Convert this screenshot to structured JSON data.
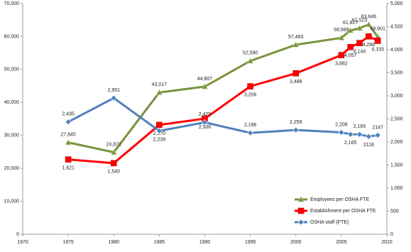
{
  "chart_data": {
    "type": "line",
    "x": [
      1975,
      1980,
      1985,
      1990,
      1995,
      2000,
      2005,
      2006,
      2007,
      2008,
      2009
    ],
    "xlim": [
      1970,
      2010
    ],
    "xticks": [
      1970,
      1975,
      1980,
      1985,
      1990,
      1995,
      2000,
      2005,
      2010
    ],
    "ylim": [
      0,
      70000
    ],
    "yticks": [
      0,
      {
        "value": 10000,
        "label": "10,000"
      },
      {
        "value": 20000,
        "label": "20,000"
      },
      {
        "value": 30000,
        "label": "30,000"
      },
      {
        "value": 40000,
        "label": "40,000"
      },
      {
        "value": 50000,
        "label": "50,000"
      },
      {
        "value": 60000,
        "label": "60,000"
      },
      {
        "value": 70000,
        "label": "70,000"
      }
    ],
    "y2lim": [
      0,
      5000
    ],
    "y2ticks": [
      0,
      500,
      {
        "value": 1000,
        "label": "1,000"
      },
      {
        "value": 1500,
        "label": "1,500"
      },
      {
        "value": 2000,
        "label": "2,000"
      },
      {
        "value": 2500,
        "label": "2,500"
      },
      {
        "value": 3000,
        "label": "3,000"
      },
      {
        "value": 3500,
        "label": "3,500"
      },
      {
        "value": 4000,
        "label": "4,000"
      },
      {
        "value": 4500,
        "label": "4,500"
      },
      {
        "value": 5000,
        "label": "5,000"
      }
    ],
    "legend": "lower right",
    "series": [
      {
        "name": "Employees per OSHA FTE",
        "color": "#77933c",
        "marker": "triangle",
        "values": [
          27845,
          24871,
          43017,
          44807,
          52590,
          57493,
          59589,
          61817,
          62523,
          63648,
          59901
        ],
        "value_labels": [
          "27,845",
          "24,871",
          "43,017",
          "44,807",
          "52,590",
          "57,493",
          "59,589",
          "61,817",
          "62,523",
          "63,648",
          "59,901"
        ]
      },
      {
        "name": "Establishment per OSHA FTE",
        "color": "#ff0000",
        "marker": "square",
        "axis": "y2",
        "values": [
          1621,
          1540,
          2370,
          2506,
          3206,
          3488,
          3882,
          4057,
          4144,
          4288,
          4193
        ],
        "value_labels": [
          "1,621",
          "1,540",
          "2,370",
          "2,506",
          "3,206",
          "3,488",
          "3,882",
          "4,057",
          "4,144",
          "4,288",
          "4,193"
        ]
      },
      {
        "name": "OSHA staff (FTE)",
        "color": "#4f81bd",
        "marker": "diamond",
        "axis": "y2",
        "values": [
          2435,
          2951,
          2239,
          2425,
          2196,
          2259,
          2208,
          2165,
          2165,
          2118,
          2147
        ],
        "value_labels": [
          "2,435",
          "2,951",
          "2,239",
          "2,425",
          "2,196",
          "2,259",
          "2,208",
          "2,165",
          "2,165",
          "2118",
          "2147"
        ]
      }
    ]
  }
}
